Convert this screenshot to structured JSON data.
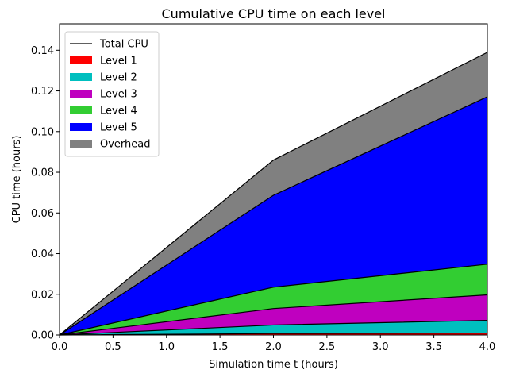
{
  "chart_data": {
    "type": "area",
    "title": "Cumulative CPU time on each level",
    "xlabel": "Simulation time t (hours)",
    "ylabel": "CPU time (hours)",
    "x": [
      0.0,
      2.0,
      4.0
    ],
    "xlim": [
      0.0,
      4.0
    ],
    "ylim": [
      0.0,
      0.153
    ],
    "xticks": [
      "0.0",
      "0.5",
      "1.0",
      "1.5",
      "2.0",
      "2.5",
      "3.0",
      "3.5",
      "4.0"
    ],
    "yticks": [
      "0.00",
      "0.02",
      "0.04",
      "0.06",
      "0.08",
      "0.10",
      "0.12",
      "0.14"
    ],
    "stacked": true,
    "grid": false,
    "legend_position": "top-left",
    "total_line": {
      "name": "Total CPU",
      "color": "#000000"
    },
    "series": [
      {
        "name": "Level 1",
        "color": "#ff0000",
        "values": [
          0.0,
          0.0007,
          0.0009
        ]
      },
      {
        "name": "Level 2",
        "color": "#00bfbf",
        "values": [
          0.0,
          0.0042,
          0.0063
        ]
      },
      {
        "name": "Level 3",
        "color": "#bf00bf",
        "values": [
          0.0,
          0.0081,
          0.0125
        ]
      },
      {
        "name": "Level 4",
        "color": "#32cd32",
        "values": [
          0.0,
          0.0105,
          0.0151
        ]
      },
      {
        "name": "Level 5",
        "color": "#0000ff",
        "values": [
          0.0,
          0.0452,
          0.0823
        ]
      },
      {
        "name": "Overhead",
        "color": "#808080",
        "values": [
          0.0,
          0.0173,
          0.0219
        ]
      }
    ]
  }
}
